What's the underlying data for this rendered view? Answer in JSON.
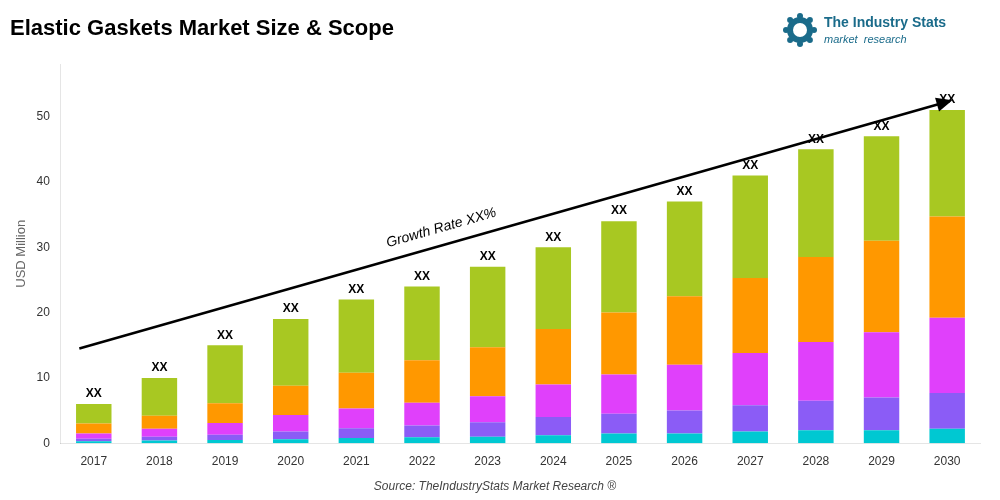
{
  "chart_data": {
    "type": "bar",
    "title": "Elastic Gaskets Market Size & Scope",
    "y_label": "USD Million",
    "source": "Source: TheIndustryStats Market Research ®",
    "logo": {
      "texts": [
        "The Industry Stats",
        "market  research"
      ],
      "color": "#1a6b8a"
    },
    "categories": [
      2017,
      2018,
      2019,
      2020,
      2021,
      2022,
      2023,
      2024,
      2025,
      2026,
      2027,
      2028,
      2029,
      2030
    ],
    "series": [
      {
        "color": "#00c8d2",
        "values": [
          0.3,
          0.4,
          0.5,
          0.6,
          0.8,
          0.9,
          1.0,
          1.2,
          1.5,
          1.5,
          1.8,
          2.0,
          2.0,
          2.2
        ]
      },
      {
        "color": "#8b5cf6",
        "values": [
          0.4,
          0.6,
          0.8,
          1.2,
          1.5,
          1.8,
          2.2,
          2.8,
          3.0,
          3.5,
          4.0,
          4.5,
          5.0,
          5.5
        ]
      },
      {
        "color": "#e040fb",
        "values": [
          0.8,
          1.2,
          1.8,
          2.5,
          3.0,
          3.5,
          4.0,
          5.0,
          6.0,
          7.0,
          8.0,
          9.0,
          10.0,
          11.5
        ]
      },
      {
        "color": "#ff9800",
        "values": [
          1.5,
          2.0,
          3.0,
          4.5,
          5.5,
          6.5,
          7.5,
          8.5,
          9.5,
          10.5,
          11.5,
          13.0,
          14.0,
          15.5
        ]
      },
      {
        "color": "#a8c822",
        "values": [
          3.0,
          5.8,
          8.9,
          10.2,
          11.2,
          11.3,
          12.3,
          12.5,
          14.0,
          14.5,
          15.7,
          16.5,
          16.0,
          16.3
        ]
      }
    ],
    "stacked": true,
    "grid": false,
    "ylim": [
      0,
      58
    ],
    "yticks": [
      0,
      10,
      20,
      30,
      40,
      50
    ],
    "annotations": [
      {
        "text": "Growth Rate XX%",
        "arrow": {
          "from": 14.5,
          "to": 52.5
        }
      },
      {
        "text": "XX",
        "category": 2017
      },
      {
        "text": "XX",
        "category": 2018
      },
      {
        "text": "XX",
        "category": 2019
      },
      {
        "text": "XX",
        "category": 2020
      },
      {
        "text": "XX",
        "category": 2021
      },
      {
        "text": "XX",
        "category": 2022
      },
      {
        "text": "XX",
        "category": 2023
      },
      {
        "text": "XX",
        "category": 2024
      },
      {
        "text": "XX",
        "category": 2025
      },
      {
        "text": "XX",
        "category": 2026
      },
      {
        "text": "XX",
        "category": 2027
      },
      {
        "text": "XX",
        "category": 2028
      },
      {
        "text": "XX",
        "category": 2029
      },
      {
        "text": "XX",
        "category": 2030
      }
    ]
  }
}
